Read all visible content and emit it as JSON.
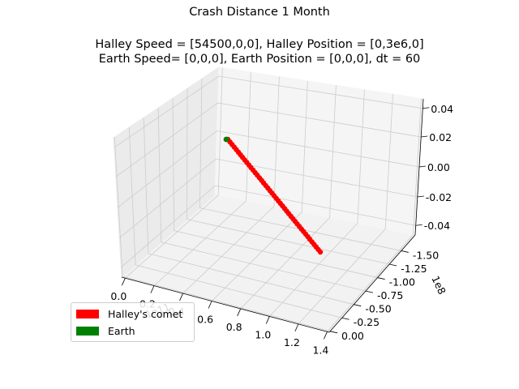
{
  "title": "Crash Distance 1 Month",
  "subtitle_line1": "Halley Speed = [54500,0,0], Halley Position = [0,3e6,0]",
  "subtitle_line2": "Earth Speed= [0,0,0], Earth Position = [0,0,0], dt = 60",
  "colors": {
    "halley": "#ff0000",
    "earth": "#008000",
    "pane": "#f2f2f2",
    "grid": "#cccccc"
  },
  "chart_data": {
    "type": "scatter",
    "projection": "3d",
    "x_ticks": [
      "0.0",
      "0.2",
      "0.4",
      "0.6",
      "0.8",
      "1.0",
      "1.2",
      "1.4"
    ],
    "x_offset": "1e11",
    "y_ticks": [
      "0.00",
      "-0.25",
      "-0.50",
      "-0.75",
      "-1.00",
      "-1.25",
      "-1.50"
    ],
    "y_offset": "1e8",
    "z_ticks": [
      "0.04",
      "0.02",
      "0.00",
      "-0.02",
      "-0.04"
    ],
    "series": [
      {
        "name": "Halley's comet",
        "color": "#ff0000",
        "x_range": [
          0.0,
          1.41
        ],
        "y_range": [
          0.0,
          -1.41
        ],
        "z": 0.0,
        "num_points": 45
      },
      {
        "name": "Earth",
        "x": 0.0,
        "y": 0.0,
        "z": 0.0,
        "color": "#008000"
      }
    ],
    "legend_position": "lower-left",
    "grid": true
  },
  "legend": {
    "items": [
      {
        "label": "Halley's comet",
        "color": "#ff0000"
      },
      {
        "label": "Earth",
        "color": "#008000"
      }
    ]
  }
}
